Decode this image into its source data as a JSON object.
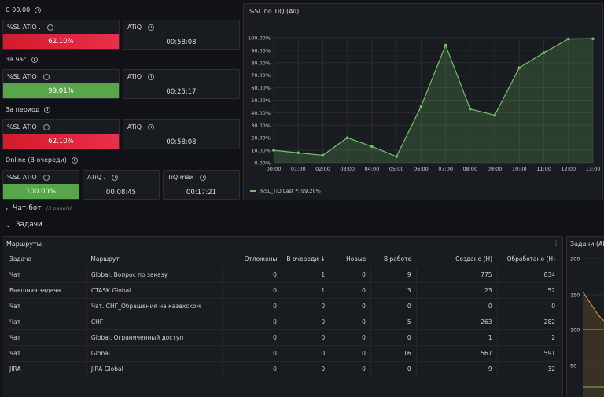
{
  "sections": {
    "since_midnight": "С 00:00",
    "per_hour": "За час",
    "per_period": "За период",
    "online": "Online (В очереди)"
  },
  "stats": {
    "since_midnight": {
      "sl_title": "%SL ATiQ .",
      "sl_value": "62.10%",
      "atiq_title": "ATiQ",
      "atiq_value": "00:58:08"
    },
    "per_hour": {
      "sl_title": "%SL ATiQ",
      "sl_value": "99.01%",
      "atiq_title": "ATiQ",
      "atiq_value": "00:25:17"
    },
    "per_period": {
      "sl_title": "%SL ATiQ",
      "sl_value": "62.10%",
      "atiq_title": "ATiQ",
      "atiq_value": "00:58:08"
    },
    "online": {
      "sl_title": "%SL ATiQ",
      "sl_value": "100.00%",
      "atiq_title": "ATiQ .",
      "atiq_value": "00:08:45",
      "max_title": "TiQ max",
      "max_value": "00:17:21"
    }
  },
  "chart_panel": {
    "title": "%SL по TiQ (All)",
    "legend": "%SL_TiQ  Last *: 99.20%"
  },
  "chart_data": {
    "type": "area",
    "title": "%SL по TiQ (All)",
    "x": [
      "00:00",
      "01:00",
      "02:00",
      "03:00",
      "04:00",
      "05:00",
      "06:00",
      "07:00",
      "08:00",
      "09:00",
      "10:00",
      "11:00",
      "12:00",
      "13:00"
    ],
    "y_ticks": [
      "0.00%",
      "10.00%",
      "20.00%",
      "30.00%",
      "40.00%",
      "50.00%",
      "60.00%",
      "70.00%",
      "80.00%",
      "90.00%",
      "100.00%"
    ],
    "ylim": [
      0,
      100
    ],
    "series": [
      {
        "name": "%SL_TiQ",
        "values": [
          10,
          8,
          6,
          20,
          13,
          5,
          45,
          94,
          43,
          38,
          76,
          88,
          99,
          99.2
        ]
      }
    ],
    "grid": true,
    "legend": "bottom-left",
    "color": "#73bf69"
  },
  "rows": {
    "chatbot": {
      "title": "Чат-бот",
      "sub": "(3 panels)"
    },
    "tasks": {
      "title": "Задачи"
    }
  },
  "routes": {
    "title": "Маршруты",
    "columns": [
      "Задача",
      "Маршрут",
      "Отложены",
      "В очереди ↓",
      "Новые",
      "В работе",
      "Создано (Н)",
      "Обработано (Н)"
    ],
    "rows": [
      [
        "Чат",
        "Global. Вопрос по заказу",
        "0",
        "1",
        "0",
        "9",
        "775",
        "834"
      ],
      [
        "Внешняя задача",
        "CTASK Global",
        "0",
        "1",
        "0",
        "3",
        "23",
        "52"
      ],
      [
        "Чат",
        "Чат. СНГ_Обращения на казахском",
        "0",
        "0",
        "0",
        "0",
        "0",
        "0"
      ],
      [
        "Чат",
        "СНГ",
        "0",
        "0",
        "0",
        "5",
        "263",
        "282"
      ],
      [
        "Чат",
        "Global. Ограниченный доступ",
        "0",
        "0",
        "0",
        "0",
        "1",
        "2"
      ],
      [
        "Чат",
        "Global",
        "0",
        "0",
        "0",
        "16",
        "567",
        "591"
      ],
      [
        "JIRA",
        "JIRA Global",
        "0",
        "0",
        "0",
        "0",
        "9",
        "32"
      ]
    ]
  },
  "side_panel": {
    "title": "Задачи (All",
    "y_ticks": [
      "200",
      "150",
      "100",
      "50"
    ]
  }
}
